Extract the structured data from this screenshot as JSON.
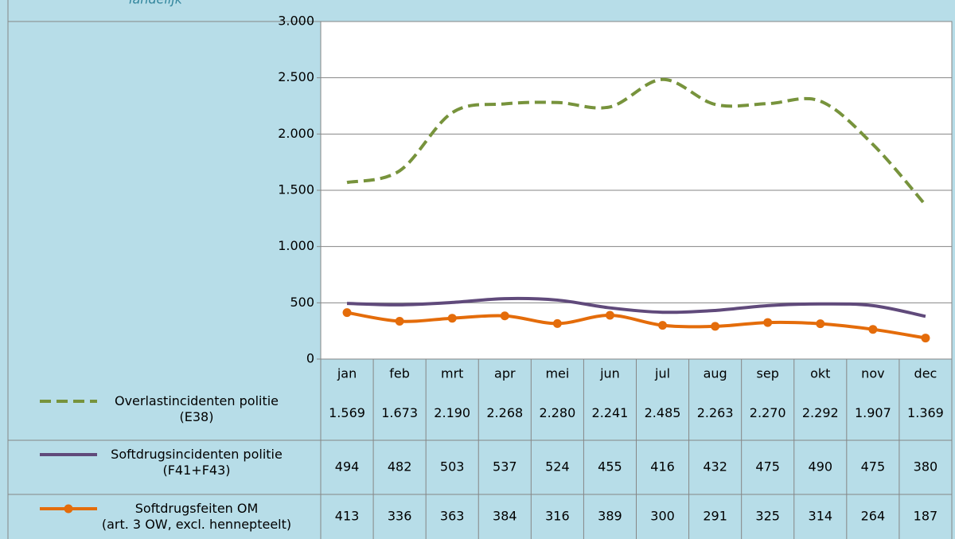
{
  "chart_data": {
    "type": "line",
    "subtitle": "landelijk",
    "categories": [
      "jan",
      "feb",
      "mrt",
      "apr",
      "mei",
      "jun",
      "jul",
      "aug",
      "sep",
      "okt",
      "nov",
      "dec"
    ],
    "ylim": [
      0,
      3000
    ],
    "yticks": [
      0,
      500,
      {
        "value": 1000,
        "label": "1.000"
      },
      {
        "value": 1500,
        "label": "1.500"
      },
      {
        "value": 2000,
        "label": "2.000"
      },
      {
        "value": 2500,
        "label": "2.500"
      },
      {
        "value": 3000,
        "label": "3.000"
      }
    ],
    "grid": true,
    "series": [
      {
        "name": "Overlastincidenten politie\n(E38)",
        "color": "#77933c",
        "dashed": true,
        "markers": false,
        "values": [
          1569,
          1673,
          2190,
          2268,
          2280,
          2241,
          2485,
          2263,
          2270,
          2292,
          1907,
          1369
        ],
        "value_labels": [
          "1.569",
          "1.673",
          "2.190",
          "2.268",
          "2.280",
          "2.241",
          "2.485",
          "2.263",
          "2.270",
          "2.292",
          "1.907",
          "1.369"
        ]
      },
      {
        "name": "Softdrugsincidenten politie\n(F41+F43)",
        "color": "#604a7b",
        "dashed": false,
        "markers": false,
        "values": [
          494,
          482,
          503,
          537,
          524,
          455,
          416,
          432,
          475,
          490,
          475,
          380
        ]
      },
      {
        "name": "Softdrugsfeiten OM\n(art. 3 OW, excl. hennepteelt)",
        "color": "#e46c0a",
        "dashed": false,
        "markers": true,
        "values": [
          413,
          336,
          363,
          384,
          316,
          389,
          300,
          291,
          325,
          314,
          264,
          187
        ]
      }
    ]
  }
}
